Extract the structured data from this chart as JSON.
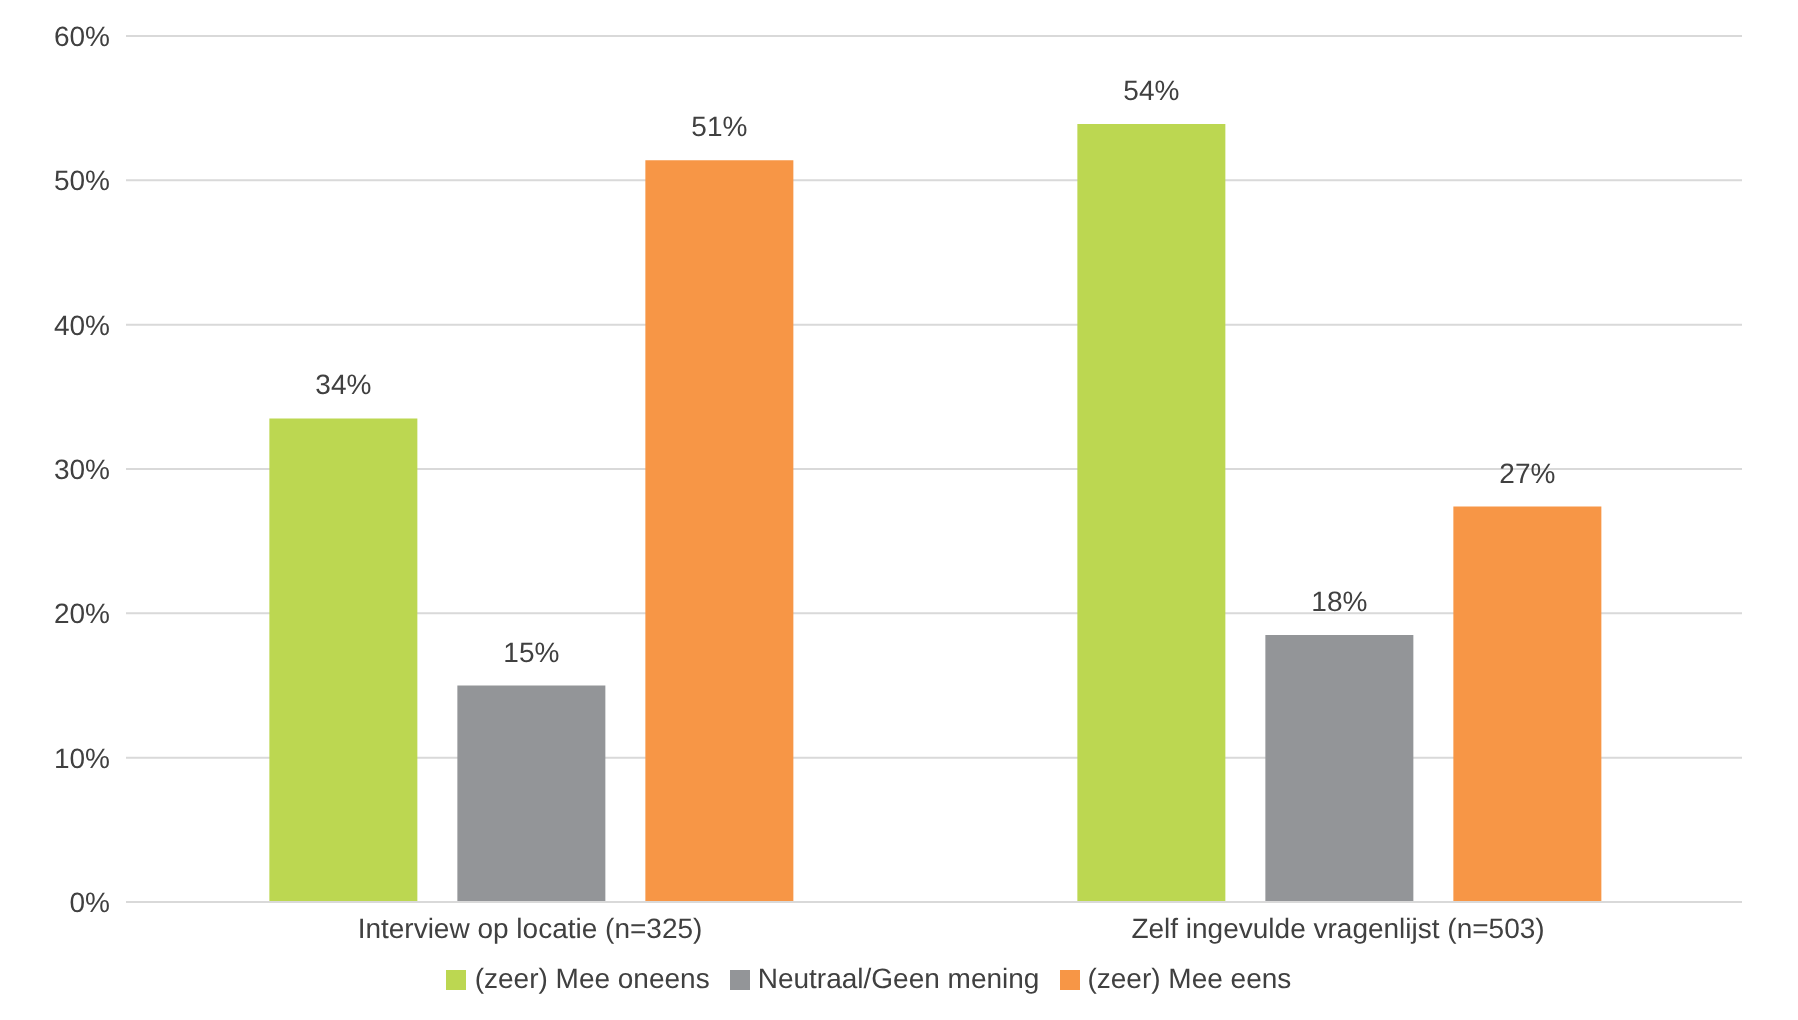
{
  "chart_data": {
    "type": "bar",
    "categories": [
      "Interview op locatie (n=325)",
      "Zelf ingevulde vragenlijst (n=503)"
    ],
    "series": [
      {
        "name": "(zeer) Mee oneens",
        "color": "#bcd751",
        "values": [
          33.5,
          53.9
        ],
        "value_labels": [
          "34%",
          "54%"
        ]
      },
      {
        "name": "Neutraal/Geen mening",
        "color": "#939598",
        "values": [
          15.0,
          18.5
        ],
        "value_labels": [
          "15%",
          "18%"
        ]
      },
      {
        "name": "(zeer) Mee eens",
        "color": "#f79646",
        "values": [
          51.4,
          27.4
        ],
        "value_labels": [
          "51%",
          "27%"
        ]
      }
    ],
    "ylim": [
      0,
      60
    ],
    "yticks": [
      {
        "value": 0,
        "label": "0%"
      },
      {
        "value": 10,
        "label": "10%"
      },
      {
        "value": 20,
        "label": "20%"
      },
      {
        "value": 30,
        "label": "30%"
      },
      {
        "value": 40,
        "label": "40%"
      },
      {
        "value": 50,
        "label": "50%"
      },
      {
        "value": 60,
        "label": "60%"
      }
    ],
    "grid": "y",
    "legend": "bottom"
  }
}
